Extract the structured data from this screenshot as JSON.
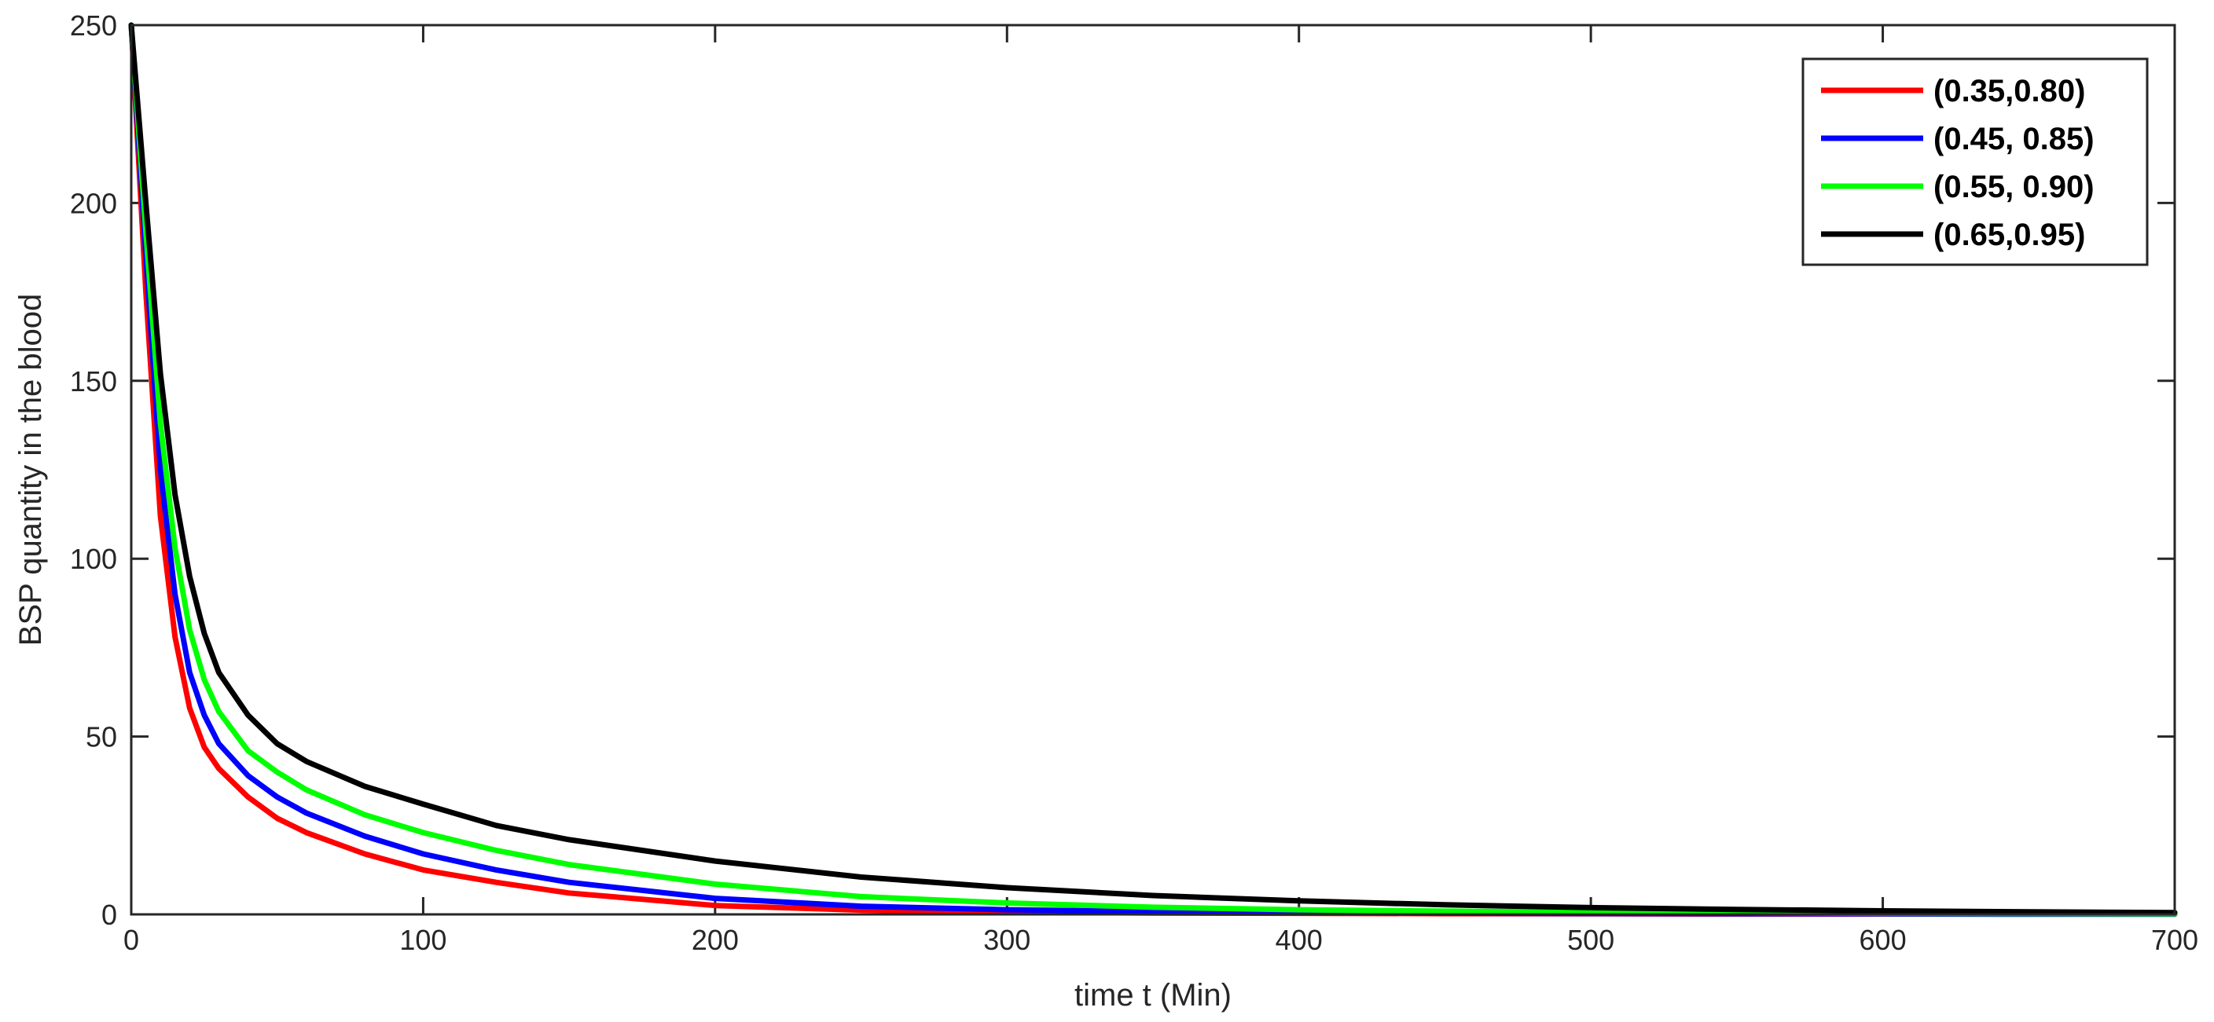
{
  "chart_data": {
    "type": "line",
    "title": "",
    "xlabel": "time t (Min)",
    "ylabel": "BSP quantity in the blood",
    "xlim": [
      0,
      700
    ],
    "ylim": [
      0,
      250
    ],
    "xticks": [
      0,
      100,
      200,
      300,
      400,
      500,
      600,
      700
    ],
    "yticks": [
      0,
      50,
      100,
      150,
      200,
      250
    ],
    "grid": false,
    "legend_position": "top-right",
    "x": [
      0,
      5,
      10,
      15,
      20,
      25,
      30,
      40,
      50,
      60,
      80,
      100,
      125,
      150,
      200,
      250,
      300,
      350,
      400,
      450,
      500,
      550,
      600,
      650,
      700
    ],
    "series": [
      {
        "name": "(0.35,0.80)",
        "color": "#ff0000",
        "values": [
          250,
          175,
          112,
          78,
          58,
          47,
          41,
          33,
          27,
          23,
          17,
          12.5,
          9,
          6,
          2.5,
          1.2,
          0.6,
          0.4,
          0.3,
          0.2,
          0.15,
          0.1,
          0.1,
          0.05,
          0.05
        ]
      },
      {
        "name": "(0.45, 0.85)",
        "color": "#0000ff",
        "values": [
          250,
          185,
          125,
          90,
          68,
          56,
          48,
          39,
          33,
          28.5,
          22,
          17,
          12.5,
          9,
          4.5,
          2.3,
          1.3,
          0.8,
          0.5,
          0.35,
          0.25,
          0.2,
          0.15,
          0.1,
          0.1
        ]
      },
      {
        "name": "(0.55, 0.90)",
        "color": "#00ff00",
        "values": [
          250,
          192,
          138,
          103,
          80,
          66,
          57,
          46,
          40,
          35,
          28,
          23,
          18,
          14,
          8.5,
          5,
          3.2,
          2,
          1.3,
          0.9,
          0.6,
          0.45,
          0.3,
          0.25,
          0.2
        ]
      },
      {
        "name": "(0.65,0.95)",
        "color": "#000000",
        "values": [
          250,
          200,
          152,
          118,
          95,
          79,
          68,
          56,
          48,
          43,
          36,
          31,
          25,
          21,
          15,
          10.5,
          7.5,
          5.3,
          3.8,
          2.7,
          1.9,
          1.4,
          1,
          0.7,
          0.5
        ]
      }
    ]
  }
}
